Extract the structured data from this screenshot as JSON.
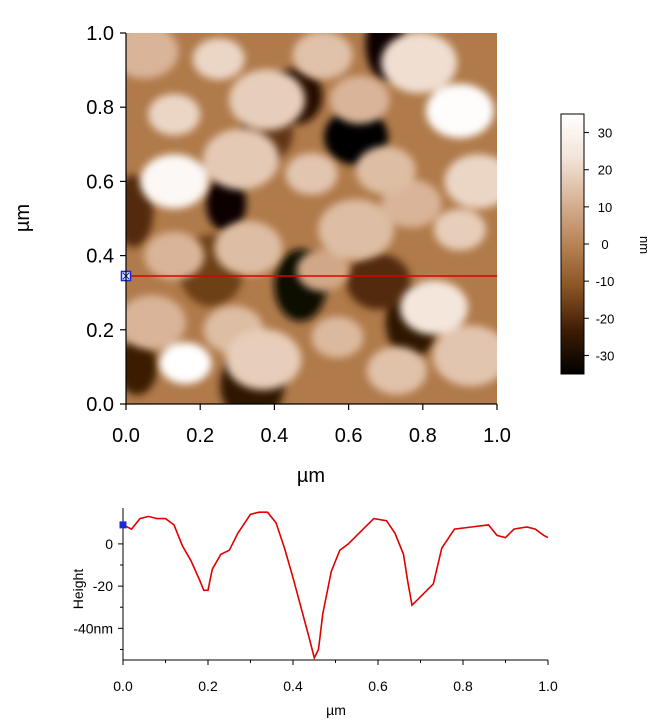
{
  "chart_data": [
    {
      "type": "heatmap",
      "title": "",
      "xlabel": "µm",
      "ylabel": "µm",
      "xlim": [
        0,
        1
      ],
      "ylim": [
        0,
        1
      ],
      "x_ticks": [
        "0.0",
        "0.2",
        "0.4",
        "0.6",
        "0.8",
        "1.0"
      ],
      "y_ticks": [
        "0.0",
        "0.2",
        "0.4",
        "0.6",
        "0.8",
        "1.0"
      ],
      "colorbar": {
        "label": "nm",
        "range": [
          -35,
          35
        ],
        "ticks": [
          "30",
          "20",
          "10",
          "0",
          "-10",
          "-20",
          "-30"
        ],
        "colors": [
          "#000000",
          "#3d1c04",
          "#8a5424",
          "#b88356",
          "#d8b396",
          "#f3e4d9",
          "#ffffff"
        ]
      },
      "grains": [
        {
          "x": 0.16,
          "y": 0.11,
          "h": 35
        },
        {
          "x": 0.29,
          "y": 0.2,
          "h": 14
        },
        {
          "x": 0.07,
          "y": 0.22,
          "h": 12
        },
        {
          "x": 0.37,
          "y": 0.12,
          "h": 18
        },
        {
          "x": 0.57,
          "y": 0.18,
          "h": 13
        },
        {
          "x": 0.73,
          "y": 0.09,
          "h": 15
        },
        {
          "x": 0.83,
          "y": 0.26,
          "h": 24
        },
        {
          "x": 0.93,
          "y": 0.13,
          "h": 16
        },
        {
          "x": 0.53,
          "y": 0.36,
          "h": 9
        },
        {
          "x": 0.13,
          "y": 0.4,
          "h": 12
        },
        {
          "x": 0.33,
          "y": 0.42,
          "h": 14
        },
        {
          "x": 0.62,
          "y": 0.47,
          "h": 14
        },
        {
          "x": 0.9,
          "y": 0.47,
          "h": 18
        },
        {
          "x": 0.77,
          "y": 0.54,
          "h": 12
        },
        {
          "x": 0.13,
          "y": 0.6,
          "h": 32
        },
        {
          "x": 0.31,
          "y": 0.66,
          "h": 17
        },
        {
          "x": 0.5,
          "y": 0.62,
          "h": 16
        },
        {
          "x": 0.7,
          "y": 0.63,
          "h": 14
        },
        {
          "x": 0.95,
          "y": 0.6,
          "h": 20
        },
        {
          "x": 0.38,
          "y": 0.82,
          "h": 18
        },
        {
          "x": 0.13,
          "y": 0.78,
          "h": 20
        },
        {
          "x": 0.63,
          "y": 0.82,
          "h": 12
        },
        {
          "x": 0.9,
          "y": 0.79,
          "h": 34
        },
        {
          "x": 0.79,
          "y": 0.92,
          "h": 22
        },
        {
          "x": 0.25,
          "y": 0.93,
          "h": 20
        },
        {
          "x": 0.53,
          "y": 0.94,
          "h": 15
        },
        {
          "x": 0.05,
          "y": 0.95,
          "h": 12
        }
      ],
      "pits": [
        {
          "x": 0.27,
          "y": 0.54,
          "h": -33
        },
        {
          "x": 0.47,
          "y": 0.32,
          "h": -32
        },
        {
          "x": 0.62,
          "y": 0.72,
          "h": -34
        },
        {
          "x": 0.7,
          "y": 0.97,
          "h": -33
        },
        {
          "x": 0.46,
          "y": 0.83,
          "h": -28
        },
        {
          "x": 0.34,
          "y": 0.05,
          "h": -26
        },
        {
          "x": 0.03,
          "y": 0.1,
          "h": -24
        },
        {
          "x": 0.77,
          "y": 0.22,
          "h": -26
        },
        {
          "x": 0.68,
          "y": 0.33,
          "h": -20
        },
        {
          "x": 0.02,
          "y": 0.52,
          "h": -20
        },
        {
          "x": 0.38,
          "y": 0.73,
          "h": -18
        },
        {
          "x": 0.23,
          "y": 0.36,
          "h": -16
        }
      ],
      "line_profile_y": 0.345,
      "marker": {
        "x": 0.0,
        "y": 0.345
      }
    },
    {
      "type": "line",
      "title": "",
      "xlabel": "µm",
      "ylabel": "Height",
      "xlim": [
        0,
        1
      ],
      "ylim": [
        -55,
        17
      ],
      "x_ticks": [
        "0.0",
        "0.2",
        "0.4",
        "0.6",
        "0.8",
        "1.0"
      ],
      "y_ticks": [
        {
          "value": 0,
          "label": "0"
        },
        {
          "value": -20,
          "label": "-20"
        },
        {
          "value": -40,
          "label": "-40nm"
        }
      ],
      "series": [
        {
          "color": "#e00000",
          "x": [
            0.0,
            0.02,
            0.04,
            0.06,
            0.08,
            0.1,
            0.12,
            0.14,
            0.16,
            0.18,
            0.19,
            0.2,
            0.21,
            0.23,
            0.25,
            0.27,
            0.3,
            0.32,
            0.34,
            0.36,
            0.38,
            0.4,
            0.42,
            0.44,
            0.45,
            0.46,
            0.47,
            0.49,
            0.51,
            0.53,
            0.56,
            0.59,
            0.62,
            0.64,
            0.66,
            0.67,
            0.68,
            0.69,
            0.71,
            0.73,
            0.75,
            0.78,
            0.82,
            0.86,
            0.88,
            0.9,
            0.92,
            0.95,
            0.97,
            0.99,
            1.0
          ],
          "y": [
            9,
            7,
            12,
            13,
            12,
            12,
            9,
            -1,
            -8,
            -17,
            -22,
            -22,
            -12,
            -5,
            -3,
            5,
            14,
            15,
            15,
            10,
            -2,
            -16,
            -31,
            -46,
            -54,
            -50,
            -33,
            -13,
            -3,
            0,
            6,
            12,
            11,
            5,
            -5,
            -18,
            -29,
            -27,
            -23,
            -19,
            -2,
            7,
            8,
            9,
            4,
            3,
            7,
            8,
            7,
            4,
            3
          ]
        }
      ],
      "marker": {
        "x": 0.0,
        "y": 9
      }
    }
  ]
}
